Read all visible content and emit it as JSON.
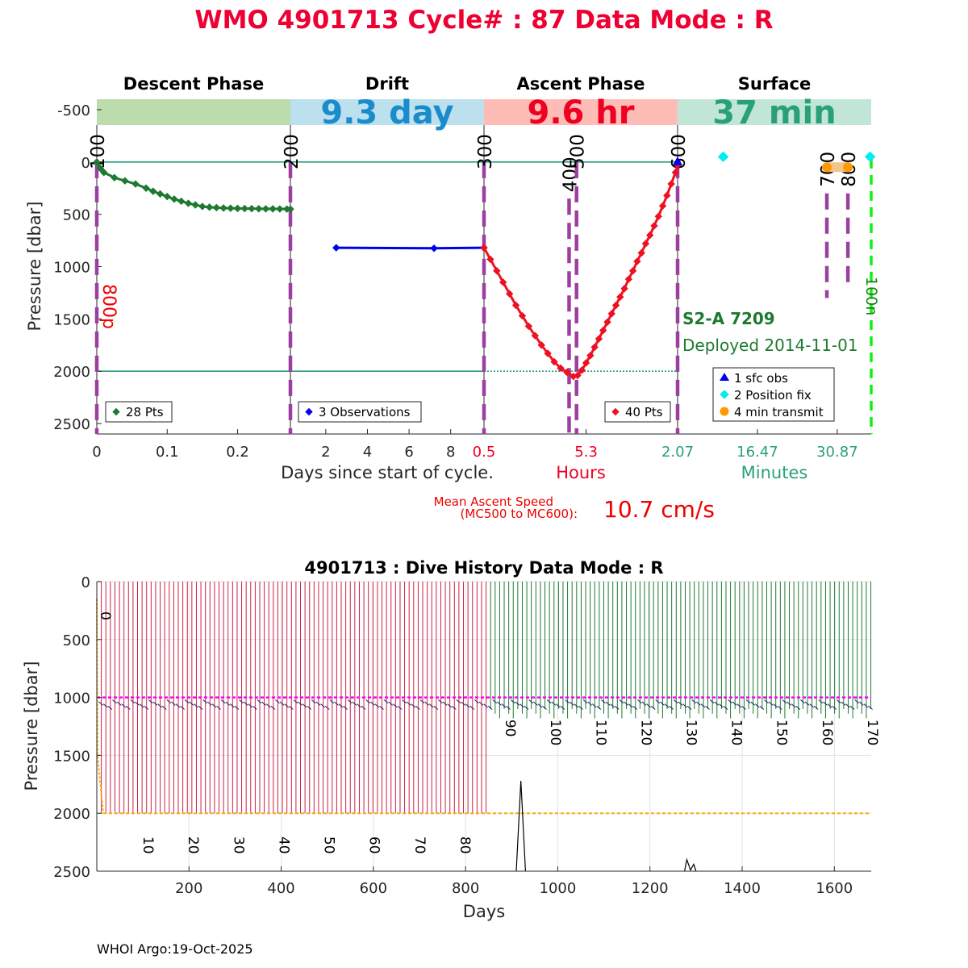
{
  "figure": {
    "title": "WMO 4901713   Cycle# : 87   Data Mode : R",
    "title_color": "#ee0033",
    "footer": "WHOI Argo:19-Oct-2025"
  },
  "chart_data": [
    {
      "type": "line",
      "name": "cycle-profile",
      "ylabel": "Pressure [dbar]",
      "ylim": [
        2600,
        -600
      ],
      "yticks": [
        "-500",
        "0",
        "500",
        "1000",
        "1500",
        "2000",
        "2500"
      ],
      "ytick_values": [
        -500,
        0,
        500,
        1000,
        1500,
        2000,
        2500
      ],
      "y_reference_lines": [
        0,
        2000
      ],
      "phases": [
        {
          "name": "Descent Phase",
          "band_color": "#bcdcae",
          "band_text": "",
          "xlim": [
            0,
            0.275
          ],
          "xticks": [
            "0",
            "0.1",
            "0.2"
          ],
          "xtick_values": [
            0,
            0.1,
            0.2
          ],
          "series": [
            {
              "color": "#1e7a30",
              "marker": "diamond",
              "x": [
                0,
                0.005,
                0.01,
                0.025,
                0.04,
                0.055,
                0.07,
                0.08,
                0.09,
                0.1,
                0.11,
                0.12,
                0.13,
                0.14,
                0.15,
                0.16,
                0.17,
                0.18,
                0.19,
                0.2,
                0.21,
                0.22,
                0.23,
                0.24,
                0.25,
                0.26,
                0.27,
                0.275
              ],
              "y": [
                0,
                60,
                100,
                150,
                180,
                210,
                250,
                280,
                305,
                330,
                355,
                375,
                395,
                410,
                425,
                432,
                436,
                440,
                442,
                444,
                445,
                446,
                447,
                448,
                448,
                449,
                450,
                450
              ]
            }
          ],
          "legend": "28 Pts",
          "legend_color": "#1e7a30",
          "events": [
            {
              "label": "100",
              "x": 0,
              "line_from": 0,
              "line_to": 2600
            },
            {
              "label": "200",
              "x": 0.275,
              "line_from": 0,
              "line_to": 2600
            }
          ],
          "side_label": "800p",
          "side_label_color": "#ee0000"
        },
        {
          "name": "Drift",
          "band_color": "#bde0ee",
          "band_text": "9.3 day",
          "band_text_color": "#1a8ccc",
          "xlim": [
            0.3,
            9.6
          ],
          "xticks": [
            "2",
            "4",
            "6",
            "8"
          ],
          "xtick_values": [
            2,
            4,
            6,
            8
          ],
          "series": [
            {
              "color": "#0000ee",
              "marker": "diamond",
              "x": [
                2.5,
                7.2,
                9.6
              ],
              "y": [
                820,
                825,
                820
              ]
            }
          ],
          "legend": "3 Observations",
          "legend_color": "#0000ee"
        },
        {
          "name": "Ascent Phase",
          "band_color": "#fdbcb5",
          "band_text": "9.6 hr",
          "band_text_color": "#ee0022",
          "xlim": [
            0.5,
            9.6
          ],
          "xticks": [
            "0.5",
            "5.3"
          ],
          "xtick_values": [
            0.5,
            5.3
          ],
          "xlabel": "Hours",
          "xlabel_color": "#ee0022",
          "series": [
            {
              "color": "#ee1122",
              "marker": "diamond",
              "x": [
                0.5,
                0.8,
                1.1,
                1.4,
                1.7,
                2.0,
                2.3,
                2.6,
                2.9,
                3.2,
                3.5,
                3.8,
                4.1,
                4.4,
                4.7,
                4.9,
                5.1,
                5.3,
                5.5,
                5.7,
                5.9,
                6.1,
                6.3,
                6.5,
                6.7,
                6.9,
                7.1,
                7.3,
                7.5,
                7.7,
                7.9,
                8.1,
                8.3,
                8.5,
                8.7,
                8.9,
                9.1,
                9.3,
                9.5,
                9.6
              ],
              "y": [
                820,
                930,
                1040,
                1150,
                1260,
                1370,
                1470,
                1570,
                1660,
                1750,
                1830,
                1910,
                1970,
                2010,
                2050,
                2040,
                1990,
                1920,
                1850,
                1770,
                1690,
                1610,
                1530,
                1450,
                1370,
                1290,
                1210,
                1120,
                1040,
                950,
                870,
                780,
                700,
                610,
                520,
                420,
                320,
                210,
                100,
                30
              ]
            }
          ],
          "legend": "40 Pts",
          "legend_color": "#ee1122",
          "events": [
            {
              "label": "300",
              "x": 0.5,
              "line_from": 0,
              "line_to": 2600
            },
            {
              "label": "400",
              "x": 4.5,
              "line_from": 350,
              "line_to": 2600
            },
            {
              "label": "500",
              "x": 4.85,
              "line_from": 0,
              "line_to": 2600
            },
            {
              "label": "600",
              "x": 9.6,
              "line_from": 0,
              "line_to": 2600
            }
          ],
          "mean_ascent_speed": {
            "caption_line1": "Mean Ascent Speed",
            "caption_line2": "(MC500 to MC600):",
            "value": "10.7 cm/s",
            "color": "#ee0000"
          }
        },
        {
          "name": "Surface",
          "band_color": "#c2e6d6",
          "band_text": "37 min",
          "band_text_color": "#2aa07a",
          "xlim": [
            2.07,
            37.0
          ],
          "xticks": [
            "2.07",
            "16.47",
            "30.87"
          ],
          "xtick_values": [
            2.07,
            16.47,
            30.87
          ],
          "xlabel": "Minutes",
          "xlabel_color": "#2aa07a",
          "sfc_obs": [
            {
              "x": 2.07,
              "y": 0
            }
          ],
          "position_fix": [
            {
              "x": 10.3,
              "y": -50
            },
            {
              "x": 36.8,
              "y": -50
            }
          ],
          "transmit": {
            "x_from": 29.0,
            "x_to": 32.8,
            "y": 50
          },
          "legend": [
            "1 sfc obs",
            "2 Position fix",
            "4 min transmit"
          ],
          "legend_colors": [
            "#0000ee",
            "#00eeee",
            "#ff9900"
          ],
          "events": [
            {
              "label": "700",
              "x": 29.0,
              "line_from": 300,
              "line_to": 1300
            },
            {
              "label": "800",
              "x": 32.8,
              "line_from": 300,
              "line_to": 1200
            }
          ],
          "edge_label": "100n",
          "edge_label_color": "#118811",
          "edge_line_color": "#11ee11",
          "float_model": "S2-A 7209",
          "deployed": "Deployed 2014-11-01",
          "float_info_color": "#1e7a30"
        }
      ],
      "xlabel": "Days since start of cycle."
    },
    {
      "type": "line",
      "name": "dive-history",
      "title": "4901713 : Dive History      Data Mode : R",
      "xlabel": "Days",
      "ylabel": "Pressure [dbar]",
      "xlim": [
        0,
        1680
      ],
      "ylim": [
        2500,
        0
      ],
      "xticks": [
        "200",
        "400",
        "600",
        "800",
        "1000",
        "1200",
        "1400",
        "1600"
      ],
      "xtick_values": [
        200,
        400,
        600,
        800,
        1000,
        1200,
        1400,
        1600
      ],
      "yticks": [
        "0",
        "500",
        "1000",
        "1500",
        "2000",
        "2500"
      ],
      "ytick_values": [
        0,
        500,
        1000,
        1500,
        2000,
        2500
      ],
      "park_pressure": 1000,
      "park_color": "#ff00ff",
      "profile_pressure": 2000,
      "profile_color": "#ffaa00",
      "cycle_period_days": 9.82,
      "deep_cycles_until": 86,
      "total_cycles": 171,
      "deep_color": "#cc2244",
      "shallow_color": "#1e7a30",
      "cycle_labels_deep": [
        "10",
        "20",
        "30",
        "40",
        "50",
        "60",
        "70",
        "80"
      ],
      "cycle_labels_deep_values": [
        10,
        20,
        30,
        40,
        50,
        60,
        70,
        80
      ],
      "cycle_labels_shallow": [
        "90",
        "100",
        "110",
        "120",
        "130",
        "140",
        "150",
        "160",
        "170"
      ],
      "cycle_labels_shallow_values": [
        90,
        100,
        110,
        120,
        130,
        140,
        150,
        160,
        170
      ],
      "first_label": "0",
      "spikes": [
        {
          "x": [
            910,
            920,
            930
          ],
          "y": [
            2500,
            1720,
            2500
          ]
        },
        {
          "x": [
            1275,
            1280,
            1288,
            1295,
            1300
          ],
          "y": [
            2500,
            2400,
            2490,
            2440,
            2500
          ]
        }
      ]
    }
  ]
}
